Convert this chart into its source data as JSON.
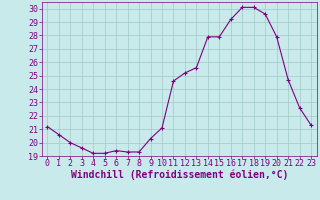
{
  "x": [
    0,
    1,
    2,
    3,
    4,
    5,
    6,
    7,
    8,
    9,
    10,
    11,
    12,
    13,
    14,
    15,
    16,
    17,
    18,
    19,
    20,
    21,
    22,
    23
  ],
  "y": [
    21.2,
    20.6,
    20.0,
    19.6,
    19.2,
    19.2,
    19.4,
    19.3,
    19.3,
    20.3,
    21.1,
    24.6,
    25.2,
    25.6,
    27.9,
    27.9,
    29.2,
    30.1,
    30.1,
    29.6,
    27.9,
    24.7,
    22.6,
    21.3
  ],
  "line_color": "#800080",
  "marker": "+",
  "bg_color": "#c8eaea",
  "grid_color": "#a0c8c8",
  "xlabel": "Windchill (Refroidissement éolien,°C)",
  "xlabel_color": "#800080",
  "tick_color": "#800080",
  "label_color": "#800080",
  "ylim": [
    19,
    30.5
  ],
  "xlim": [
    -0.5,
    23.5
  ],
  "yticks": [
    19,
    20,
    21,
    22,
    23,
    24,
    25,
    26,
    27,
    28,
    29,
    30
  ],
  "xticks": [
    0,
    1,
    2,
    3,
    4,
    5,
    6,
    7,
    8,
    9,
    10,
    11,
    12,
    13,
    14,
    15,
    16,
    17,
    18,
    19,
    20,
    21,
    22,
    23
  ],
  "tick_fontsize": 6.0,
  "xlabel_fontsize": 7.0
}
